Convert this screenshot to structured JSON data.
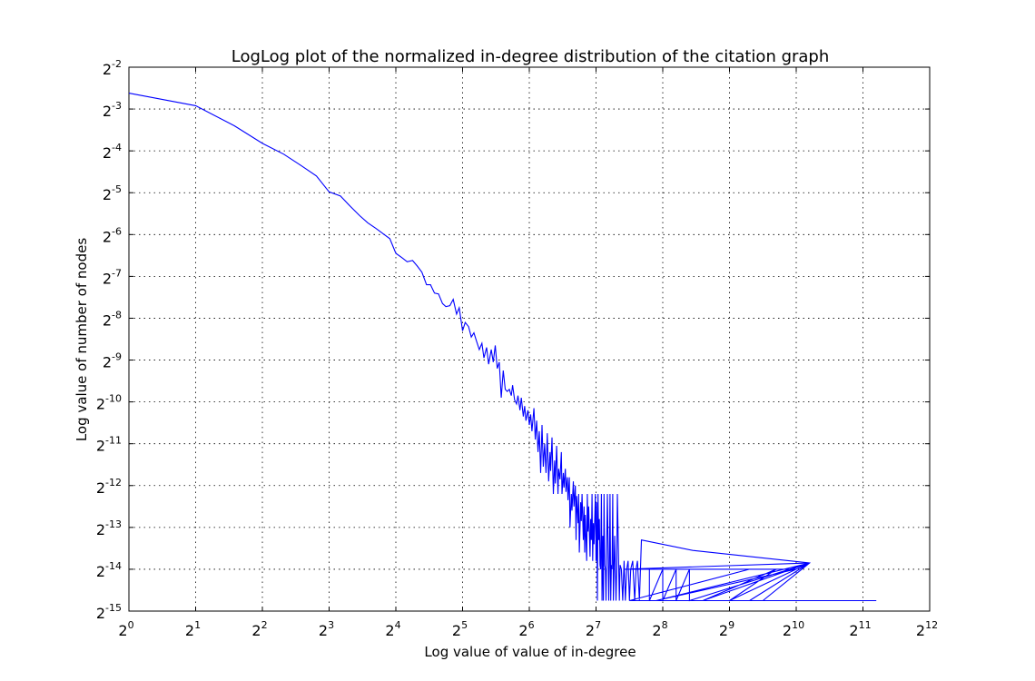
{
  "chart_data": {
    "type": "line",
    "title": "LogLog plot of the normalized in-degree distribution of the citation graph",
    "xlabel": "Log value of value of in-degree",
    "ylabel": "Log value of number of nodes",
    "x_scale": "log2",
    "y_scale": "log2",
    "xlim_log2": [
      0,
      12
    ],
    "ylim_log2": [
      -15,
      -2
    ],
    "x_ticks": [
      {
        "base": "2",
        "exp": "0"
      },
      {
        "base": "2",
        "exp": "1"
      },
      {
        "base": "2",
        "exp": "2"
      },
      {
        "base": "2",
        "exp": "3"
      },
      {
        "base": "2",
        "exp": "4"
      },
      {
        "base": "2",
        "exp": "5"
      },
      {
        "base": "2",
        "exp": "6"
      },
      {
        "base": "2",
        "exp": "7"
      },
      {
        "base": "2",
        "exp": "8"
      },
      {
        "base": "2",
        "exp": "9"
      },
      {
        "base": "2",
        "exp": "10"
      },
      {
        "base": "2",
        "exp": "11"
      },
      {
        "base": "2",
        "exp": "12"
      }
    ],
    "y_ticks": [
      {
        "base": "2",
        "exp": "-2"
      },
      {
        "base": "2",
        "exp": "-3"
      },
      {
        "base": "2",
        "exp": "-4"
      },
      {
        "base": "2",
        "exp": "-5"
      },
      {
        "base": "2",
        "exp": "-6"
      },
      {
        "base": "2",
        "exp": "-7"
      },
      {
        "base": "2",
        "exp": "-8"
      },
      {
        "base": "2",
        "exp": "-9"
      },
      {
        "base": "2",
        "exp": "-10"
      },
      {
        "base": "2",
        "exp": "-11"
      },
      {
        "base": "2",
        "exp": "-12"
      },
      {
        "base": "2",
        "exp": "-13"
      },
      {
        "base": "2",
        "exp": "-14"
      },
      {
        "base": "2",
        "exp": "-15"
      }
    ],
    "grid": true,
    "line_color": "#0000ff",
    "series": [
      {
        "log2_points": [
          [
            0,
            -2.62
          ],
          [
            1,
            -2.92
          ],
          [
            1.58,
            -3.4
          ],
          [
            2,
            -3.82
          ],
          [
            2.32,
            -4.08
          ],
          [
            2.58,
            -4.35
          ],
          [
            2.81,
            -4.6
          ],
          [
            3,
            -4.98
          ],
          [
            3.17,
            -5.08
          ],
          [
            3.32,
            -5.33
          ],
          [
            3.46,
            -5.55
          ],
          [
            3.58,
            -5.72
          ],
          [
            3.7,
            -5.85
          ],
          [
            3.81,
            -5.98
          ],
          [
            3.91,
            -6.1
          ],
          [
            4,
            -6.45
          ],
          [
            4.09,
            -6.55
          ],
          [
            4.17,
            -6.65
          ],
          [
            4.25,
            -6.62
          ],
          [
            4.32,
            -6.75
          ],
          [
            4.39,
            -6.9
          ],
          [
            4.46,
            -7.2
          ],
          [
            4.52,
            -7.2
          ],
          [
            4.58,
            -7.4
          ],
          [
            4.64,
            -7.42
          ],
          [
            4.7,
            -7.65
          ],
          [
            4.75,
            -7.72
          ],
          [
            4.81,
            -7.7
          ],
          [
            4.86,
            -7.55
          ],
          [
            4.91,
            -7.9
          ],
          [
            4.95,
            -7.75
          ],
          [
            5,
            -8.3
          ],
          [
            5.04,
            -8.1
          ],
          [
            5.09,
            -8.2
          ],
          [
            5.13,
            -8.45
          ],
          [
            5.17,
            -8.35
          ],
          [
            5.21,
            -8.55
          ],
          [
            5.25,
            -8.75
          ],
          [
            5.29,
            -8.6
          ],
          [
            5.32,
            -8.95
          ],
          [
            5.36,
            -8.7
          ],
          [
            5.39,
            -9.1
          ],
          [
            5.43,
            -8.75
          ],
          [
            5.46,
            -9.05
          ],
          [
            5.49,
            -8.65
          ],
          [
            5.52,
            -9.2
          ],
          [
            5.55,
            -9.05
          ],
          [
            5.58,
            -9.9
          ],
          [
            5.61,
            -9.25
          ],
          [
            5.64,
            -9.7
          ],
          [
            5.67,
            -9.75
          ],
          [
            5.7,
            -9.7
          ],
          [
            5.73,
            -9.85
          ],
          [
            5.75,
            -9.6
          ],
          [
            5.78,
            -9.95
          ],
          [
            5.81,
            -10.05
          ],
          [
            5.83,
            -9.85
          ],
          [
            5.86,
            -10.2
          ],
          [
            5.88,
            -9.9
          ],
          [
            5.91,
            -10.35
          ],
          [
            5.93,
            -10.1
          ],
          [
            5.95,
            -10.45
          ],
          [
            5.98,
            -10.2
          ],
          [
            6,
            -10.55
          ],
          [
            6.02,
            -10.3
          ],
          [
            6.04,
            -10.7
          ],
          [
            6.07,
            -10.15
          ],
          [
            6.09,
            -10.9
          ],
          [
            6.11,
            -10.45
          ],
          [
            6.13,
            -11.2
          ],
          [
            6.15,
            -10.7
          ],
          [
            6.17,
            -11.7
          ],
          [
            6.19,
            -10.55
          ],
          [
            6.21,
            -11.55
          ],
          [
            6.23,
            -11.0
          ],
          [
            6.25,
            -11.7
          ],
          [
            6.27,
            -10.75
          ],
          [
            6.29,
            -11.9
          ],
          [
            6.31,
            -11.2
          ],
          [
            6.32,
            -11.65
          ],
          [
            6.34,
            -10.85
          ],
          [
            6.36,
            -12.2
          ],
          [
            6.38,
            -11.4
          ],
          [
            6.39,
            -11.95
          ],
          [
            6.41,
            -11.05
          ],
          [
            6.43,
            -12.2
          ],
          [
            6.44,
            -11.6
          ],
          [
            6.46,
            -11.85
          ],
          [
            6.48,
            -11.2
          ],
          [
            6.49,
            -12.2
          ],
          [
            6.51,
            -11.7
          ],
          [
            6.52,
            -12.05
          ],
          [
            6.54,
            -11.6
          ],
          [
            6.55,
            -12.15
          ],
          [
            6.57,
            -11.8
          ],
          [
            6.58,
            -12.35
          ],
          [
            6.6,
            -11.8
          ],
          [
            6.61,
            -13.0
          ],
          [
            6.63,
            -12.2
          ],
          [
            6.64,
            -12.6
          ],
          [
            6.66,
            -11.9
          ],
          [
            6.67,
            -12.5
          ],
          [
            6.69,
            -12.0
          ],
          [
            6.7,
            -13.3
          ],
          [
            6.71,
            -12.25
          ],
          [
            6.73,
            -12.9
          ],
          [
            6.74,
            -12.2
          ],
          [
            6.75,
            -13.6
          ],
          [
            6.77,
            -12.4
          ],
          [
            6.78,
            -12.85
          ],
          [
            6.79,
            -12.2
          ],
          [
            6.81,
            -13.3
          ],
          [
            6.82,
            -12.5
          ],
          [
            6.83,
            -13.6
          ],
          [
            6.84,
            -12.7
          ],
          [
            6.86,
            -13.8
          ],
          [
            6.87,
            -12.2
          ],
          [
            6.88,
            -13.1
          ],
          [
            6.89,
            -12.5
          ],
          [
            6.91,
            -13.7
          ],
          [
            6.92,
            -12.8
          ],
          [
            6.93,
            -13.3
          ],
          [
            6.94,
            -12.2
          ],
          [
            6.95,
            -13.8
          ],
          [
            6.96,
            -12.9
          ],
          [
            6.97,
            -13.4
          ],
          [
            6.99,
            -12.2
          ],
          [
            7,
            -13.8
          ],
          [
            7.01,
            -12.4
          ],
          [
            7.02,
            -14.75
          ],
          [
            7.03,
            -12.2
          ],
          [
            7.04,
            -13.3
          ],
          [
            7.05,
            -12.8
          ],
          [
            7.06,
            -13.9
          ],
          [
            7.07,
            -14.0
          ],
          [
            7.08,
            -12.2
          ],
          [
            7.09,
            -14.75
          ],
          [
            7.1,
            -13.2
          ],
          [
            7.11,
            -14.75
          ],
          [
            7.12,
            -12.2
          ],
          [
            7.13,
            -13.9
          ],
          [
            7.14,
            -14.0
          ],
          [
            7.15,
            -14.75
          ],
          [
            7.17,
            -12.2
          ],
          [
            7.18,
            -13.3
          ],
          [
            7.19,
            -14.75
          ],
          [
            7.2,
            -13.9
          ],
          [
            7.21,
            -12.2
          ],
          [
            7.22,
            -14.75
          ],
          [
            7.23,
            -13.9
          ],
          [
            7.24,
            -14.0
          ],
          [
            7.25,
            -12.2
          ],
          [
            7.26,
            -14.75
          ],
          [
            7.27,
            -14.0
          ],
          [
            7.28,
            -13.2
          ],
          [
            7.3,
            -14.75
          ],
          [
            7.31,
            -14.0
          ],
          [
            7.32,
            -12.2
          ],
          [
            7.35,
            -14.75
          ],
          [
            7.36,
            -13.9
          ],
          [
            7.38,
            -14.0
          ],
          [
            7.4,
            -14.75
          ],
          [
            7.42,
            -13.8
          ],
          [
            7.44,
            -14.75
          ],
          [
            7.46,
            -14.0
          ],
          [
            7.48,
            -13.8
          ],
          [
            7.5,
            -14.75
          ],
          [
            7.52,
            -14.0
          ],
          [
            7.55,
            -13.8
          ],
          [
            7.58,
            -14.75
          ],
          [
            7.6,
            -14.0
          ],
          [
            7.62,
            -13.8
          ],
          [
            7.65,
            -14.75
          ],
          [
            7.68,
            -13.3
          ],
          [
            8.45,
            -13.55
          ],
          [
            10.2,
            -13.85
          ],
          [
            9.5,
            -14.75
          ],
          [
            7.5,
            -14.75
          ],
          [
            9.3,
            -14.0
          ],
          [
            7.42,
            -14.0
          ],
          [
            10.2,
            -13.85
          ],
          [
            7.9,
            -14.75
          ],
          [
            10.0,
            -14.0
          ],
          [
            7.8,
            -14.0
          ],
          [
            7.8,
            -14.75
          ],
          [
            8.0,
            -14.0
          ],
          [
            8.0,
            -14.75
          ],
          [
            8.2,
            -14.0
          ],
          [
            8.2,
            -14.75
          ],
          [
            8.4,
            -14.0
          ],
          [
            8.4,
            -14.75
          ],
          [
            10.2,
            -13.85
          ],
          [
            8.6,
            -14.75
          ],
          [
            9.7,
            -14.0
          ],
          [
            9.0,
            -14.75
          ],
          [
            10.2,
            -13.85
          ],
          [
            9.3,
            -14.75
          ],
          [
            11.2,
            -14.75
          ]
        ]
      }
    ]
  }
}
